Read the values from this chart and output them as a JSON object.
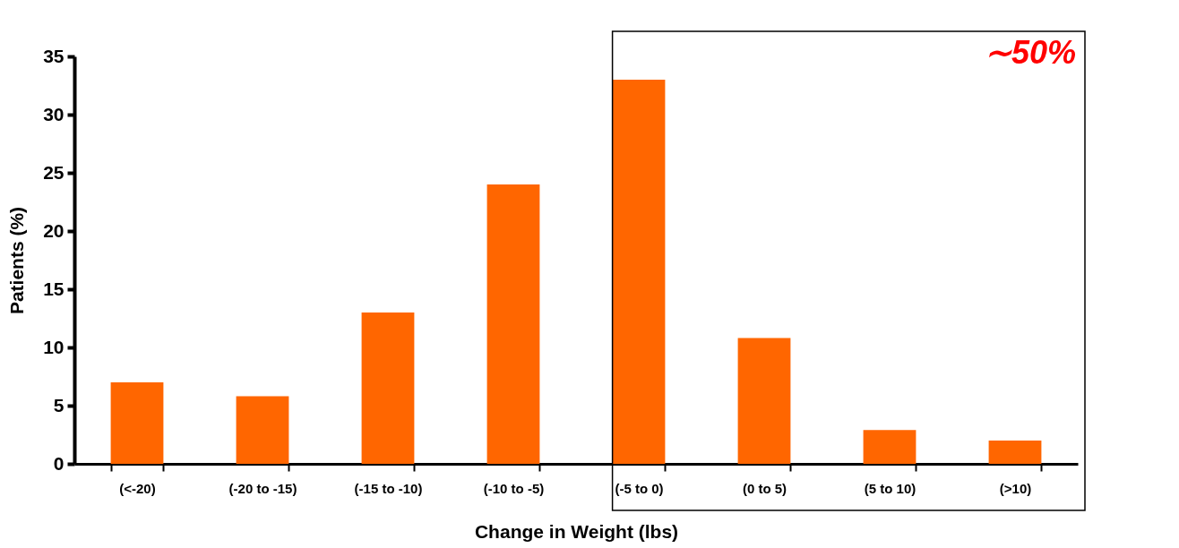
{
  "chart_data": {
    "type": "bar",
    "categories": [
      "(<-20)",
      "(-20 to -15)",
      "(-15 to -10)",
      "(-10 to -5)",
      "(-5 to 0)",
      "(0 to 5)",
      "(5 to 10)",
      "(>10)"
    ],
    "values": [
      7,
      5.8,
      13,
      24,
      33,
      10.8,
      2.9,
      2
    ],
    "color": "#ff6600",
    "xlabel": "Change in Weight (lbs)",
    "ylabel": "Patients (%)",
    "ylim": [
      0,
      35
    ],
    "yticks": [
      0,
      5,
      10,
      15,
      20,
      25,
      30,
      35
    ],
    "grid": false,
    "annotations": [
      "∼50%"
    ]
  }
}
